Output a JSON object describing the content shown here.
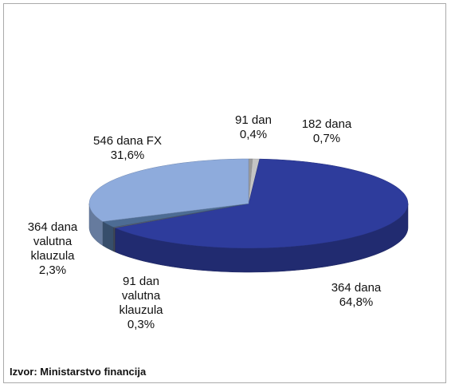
{
  "chart_data": {
    "type": "pie",
    "categories": [
      "91 dan",
      "182 dana",
      "364 dana",
      "91 dan valutna klauzula",
      "364 dana valutna klauzula",
      "546 dana FX"
    ],
    "values": [
      0.4,
      0.7,
      64.8,
      0.3,
      2.3,
      31.6
    ],
    "value_labels": [
      "0,4%",
      "0,7%",
      "64,8%",
      "0,3%",
      "2,3%",
      "31,6%"
    ],
    "colors": [
      "#9a9a9a",
      "#c4c4c4",
      "#2e3c9c",
      "#5c6474",
      "#4d6c94",
      "#8eabdc"
    ],
    "source": "Izvor: Ministarstvo financija"
  }
}
